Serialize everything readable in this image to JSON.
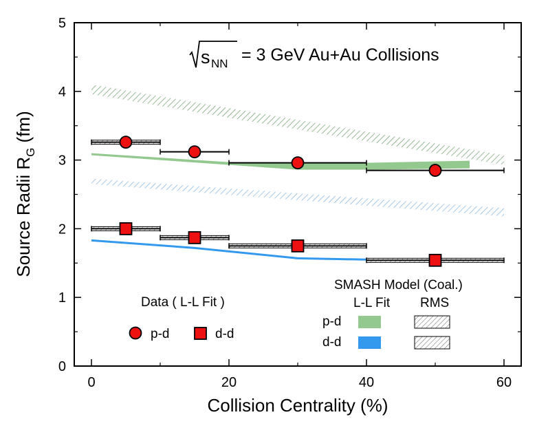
{
  "chart_data": {
    "type": "scatter",
    "title": "= 3 GeV Au+Au Collisions",
    "title_prefix": "s",
    "title_subscript": "NN",
    "xlabel": "Collision Centrality (%)",
    "ylabel": "Source Radii R",
    "ylabel_subscript": "G",
    "ylabel_suffix": " (fm)",
    "xlim": [
      0,
      62.5
    ],
    "ylim": [
      0,
      5
    ],
    "xticks": [
      0,
      20,
      40,
      60
    ],
    "yticks": [
      0,
      1,
      2,
      3,
      4,
      5
    ],
    "series": [
      {
        "name": "p-d",
        "group": "Data ( L-L Fit )",
        "marker": "circle",
        "color": "#ee1111",
        "points": [
          {
            "x": 5,
            "y": 3.26,
            "xerr": 5,
            "sys": 0.03
          },
          {
            "x": 15,
            "y": 3.12,
            "xerr": 5,
            "sys": 0.0
          },
          {
            "x": 30,
            "y": 2.96,
            "xerr": 10,
            "sys": 0.0
          },
          {
            "x": 50,
            "y": 2.85,
            "xerr": 10,
            "sys": 0.0
          }
        ]
      },
      {
        "name": "d-d",
        "group": "Data ( L-L Fit )",
        "marker": "square",
        "color": "#ee1111",
        "points": [
          {
            "x": 5,
            "y": 2.0,
            "xerr": 5,
            "sys": 0.03
          },
          {
            "x": 15,
            "y": 1.87,
            "xerr": 5,
            "sys": 0.03
          },
          {
            "x": 30,
            "y": 1.75,
            "xerr": 10,
            "sys": 0.03
          },
          {
            "x": 50,
            "y": 1.54,
            "xerr": 10,
            "sys": 0.03
          }
        ]
      },
      {
        "name": "p-d",
        "group": "SMASH Model (Coal.) L-L Fit",
        "style": "band",
        "color": "#93c88f",
        "x": [
          0,
          20,
          30,
          40,
          55
        ],
        "lower": [
          3.07,
          2.93,
          2.86,
          2.86,
          2.88
        ],
        "upper": [
          3.1,
          2.97,
          2.96,
          2.96,
          2.99
        ]
      },
      {
        "name": "d-d",
        "group": "SMASH Model (Coal.) L-L Fit",
        "style": "line",
        "color": "#3399ee",
        "x": [
          0,
          15,
          30,
          40
        ],
        "y": [
          1.83,
          1.72,
          1.57,
          1.55
        ]
      },
      {
        "name": "p-d",
        "group": "SMASH Model (Coal.) RMS",
        "style": "hatched-band",
        "color": "#6a9a6a",
        "x": [
          0,
          60
        ],
        "lower": [
          3.96,
          2.93
        ],
        "upper": [
          4.1,
          3.07
        ]
      },
      {
        "name": "d-d",
        "group": "SMASH Model (Coal.) RMS",
        "style": "hatched-band",
        "color": "#7fb0dd",
        "x": [
          0,
          60
        ],
        "lower": [
          2.65,
          2.18
        ],
        "upper": [
          2.73,
          2.3
        ]
      }
    ],
    "legend": {
      "data_title": "Data ( L-L Fit )",
      "data_entries": [
        "p-d",
        "d-d"
      ],
      "model_title": "SMASH Model (Coal.)",
      "model_col1": "L-L Fit",
      "model_col2": "RMS",
      "model_rows": [
        "p-d",
        "d-d"
      ],
      "placement": "bottom-right"
    }
  }
}
